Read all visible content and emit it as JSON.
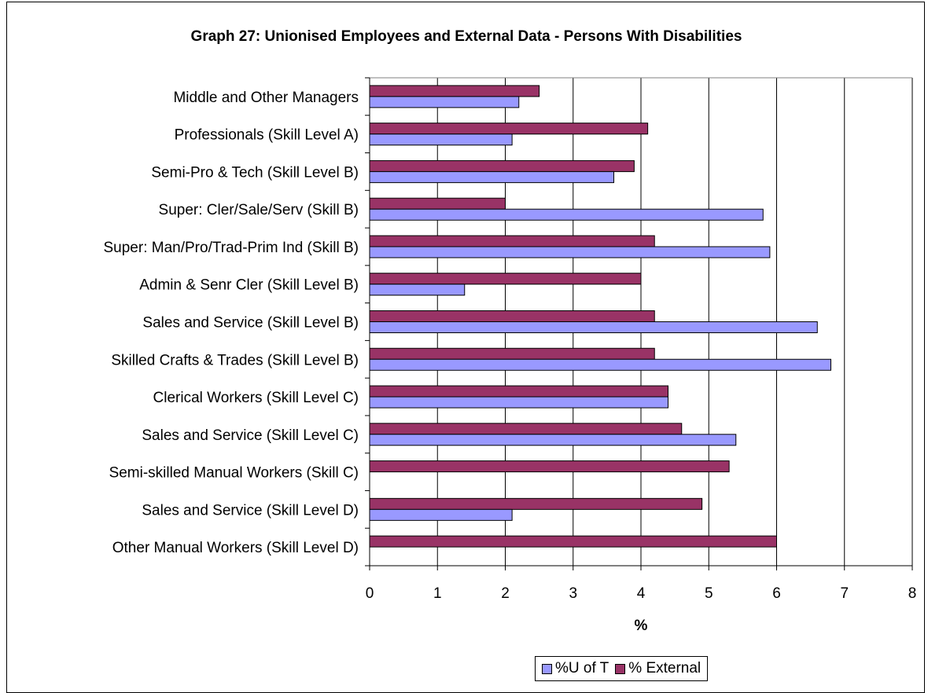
{
  "colors": {
    "series_u_of_t": "#9999ff",
    "series_external": "#993366",
    "gridline": "#000000",
    "axis": "#808080"
  },
  "chart_data": {
    "type": "bar",
    "orientation": "horizontal",
    "title": "Graph 27: Unionised Employees and External Data - Persons With Disabilities",
    "xlabel": "%",
    "ylabel": "",
    "xlim": [
      0,
      8
    ],
    "xticks": [
      "0",
      "1",
      "2",
      "3",
      "4",
      "5",
      "6",
      "7",
      "8"
    ],
    "grid": true,
    "legend_position": "bottom",
    "categories": [
      "Middle and Other Managers",
      "Professionals (Skill Level A)",
      "Semi-Pro & Tech (Skill Level B)",
      "Super: Cler/Sale/Serv (Skill B)",
      "Super: Man/Pro/Trad-Prim Ind (Skill B)",
      "Admin & Senr Cler (Skill Level B)",
      "Sales and Service (Skill Level B)",
      "Skilled Crafts & Trades (Skill Level B)",
      "Clerical Workers (Skill Level C)",
      "Sales and Service (Skill Level C)",
      "Semi-skilled Manual Workers (Skill C)",
      "Sales and Service (Skill Level D)",
      "Other Manual Workers (Skill Level D)"
    ],
    "series": [
      {
        "name": "% External",
        "color": "#993366",
        "values": [
          2.5,
          4.1,
          3.9,
          2.0,
          4.2,
          4.0,
          4.2,
          4.2,
          4.4,
          4.6,
          5.3,
          4.9,
          6.0
        ]
      },
      {
        "name": "%U of T",
        "color": "#9999ff",
        "values": [
          2.2,
          2.1,
          3.6,
          5.8,
          5.9,
          1.4,
          6.6,
          6.8,
          4.4,
          5.4,
          0,
          2.1,
          0
        ]
      }
    ],
    "legend": [
      "%U of T",
      "% External"
    ]
  }
}
